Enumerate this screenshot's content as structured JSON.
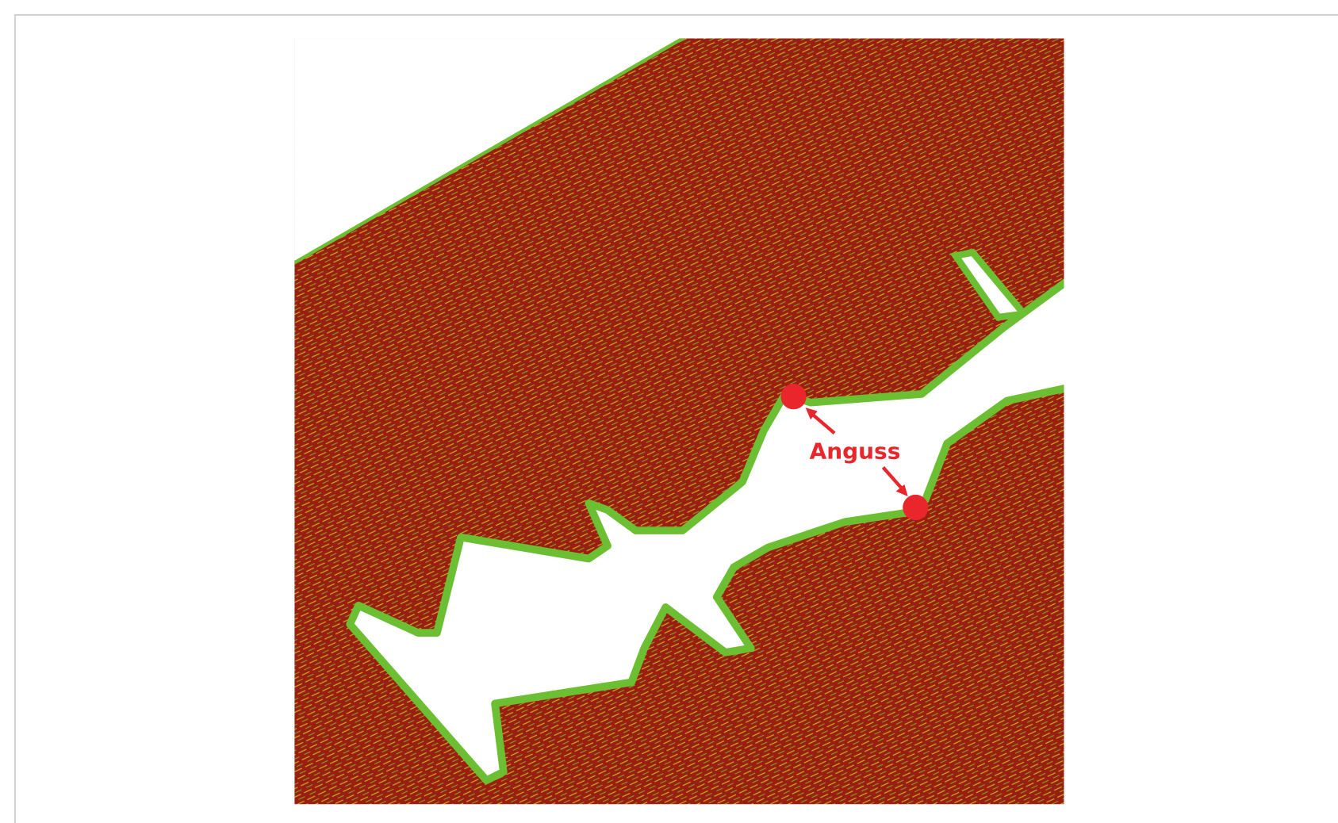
{
  "annotation": {
    "label": "Anguss"
  }
}
